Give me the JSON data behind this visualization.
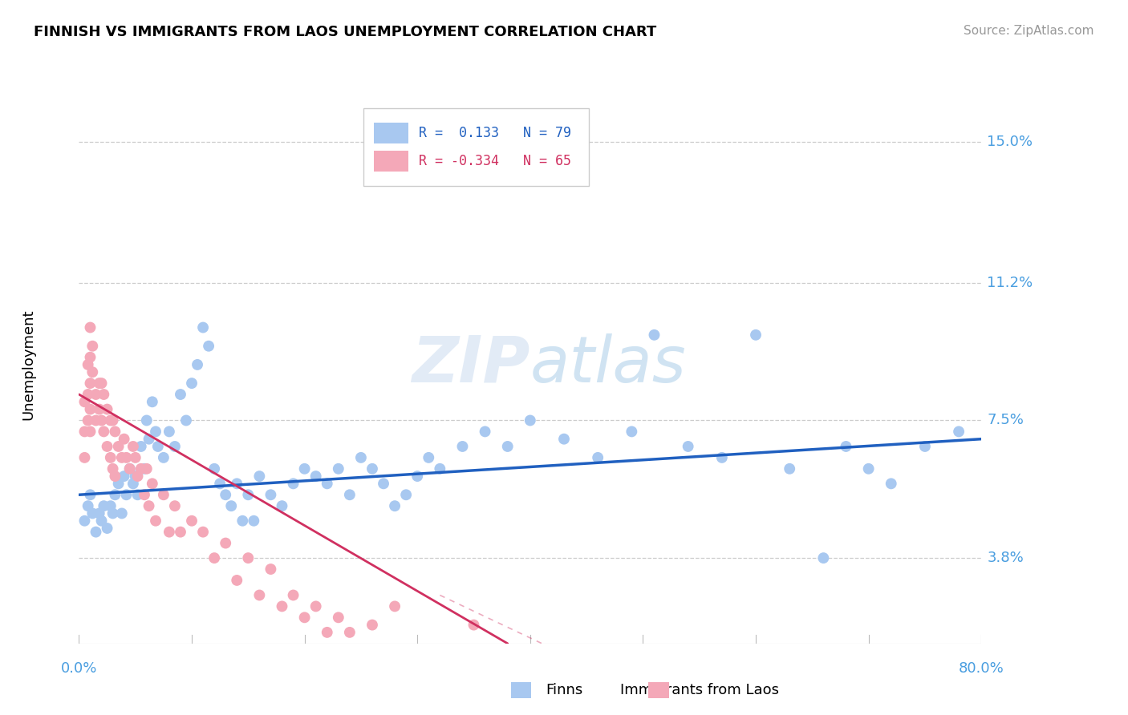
{
  "title": "FINNISH VS IMMIGRANTS FROM LAOS UNEMPLOYMENT CORRELATION CHART",
  "source": "Source: ZipAtlas.com",
  "ylabel": "Unemployment",
  "ytick_labels": [
    "3.8%",
    "7.5%",
    "11.2%",
    "15.0%"
  ],
  "ytick_values": [
    0.038,
    0.075,
    0.112,
    0.15
  ],
  "xlim": [
    0.0,
    0.8
  ],
  "ylim": [
    0.015,
    0.165
  ],
  "finn_color": "#a8c8f0",
  "laos_color": "#f4a8b8",
  "finn_line_color": "#2060c0",
  "laos_line_color": "#d03060",
  "finns_x": [
    0.005,
    0.008,
    0.01,
    0.012,
    0.015,
    0.018,
    0.02,
    0.022,
    0.025,
    0.028,
    0.03,
    0.032,
    0.035,
    0.038,
    0.04,
    0.042,
    0.045,
    0.048,
    0.05,
    0.052,
    0.055,
    0.058,
    0.06,
    0.062,
    0.065,
    0.068,
    0.07,
    0.075,
    0.08,
    0.085,
    0.09,
    0.095,
    0.1,
    0.105,
    0.11,
    0.115,
    0.12,
    0.125,
    0.13,
    0.135,
    0.14,
    0.145,
    0.15,
    0.155,
    0.16,
    0.17,
    0.18,
    0.19,
    0.2,
    0.21,
    0.22,
    0.23,
    0.24,
    0.25,
    0.26,
    0.27,
    0.28,
    0.29,
    0.3,
    0.31,
    0.32,
    0.34,
    0.36,
    0.38,
    0.4,
    0.43,
    0.46,
    0.49,
    0.51,
    0.54,
    0.57,
    0.6,
    0.63,
    0.66,
    0.68,
    0.7,
    0.72,
    0.75,
    0.78
  ],
  "finns_y": [
    0.048,
    0.052,
    0.055,
    0.05,
    0.045,
    0.05,
    0.048,
    0.052,
    0.046,
    0.052,
    0.05,
    0.055,
    0.058,
    0.05,
    0.06,
    0.055,
    0.062,
    0.058,
    0.06,
    0.055,
    0.068,
    0.062,
    0.075,
    0.07,
    0.08,
    0.072,
    0.068,
    0.065,
    0.072,
    0.068,
    0.082,
    0.075,
    0.085,
    0.09,
    0.1,
    0.095,
    0.062,
    0.058,
    0.055,
    0.052,
    0.058,
    0.048,
    0.055,
    0.048,
    0.06,
    0.055,
    0.052,
    0.058,
    0.062,
    0.06,
    0.058,
    0.062,
    0.055,
    0.065,
    0.062,
    0.058,
    0.052,
    0.055,
    0.06,
    0.065,
    0.062,
    0.068,
    0.072,
    0.068,
    0.075,
    0.07,
    0.065,
    0.072,
    0.098,
    0.068,
    0.065,
    0.098,
    0.062,
    0.038,
    0.068,
    0.062,
    0.058,
    0.068,
    0.072
  ],
  "laos_x": [
    0.005,
    0.005,
    0.005,
    0.008,
    0.008,
    0.008,
    0.01,
    0.01,
    0.01,
    0.01,
    0.01,
    0.012,
    0.012,
    0.015,
    0.015,
    0.018,
    0.018,
    0.02,
    0.02,
    0.022,
    0.022,
    0.025,
    0.025,
    0.028,
    0.028,
    0.03,
    0.03,
    0.032,
    0.032,
    0.035,
    0.038,
    0.04,
    0.042,
    0.045,
    0.048,
    0.05,
    0.052,
    0.055,
    0.058,
    0.06,
    0.062,
    0.065,
    0.068,
    0.075,
    0.08,
    0.085,
    0.09,
    0.1,
    0.11,
    0.12,
    0.13,
    0.14,
    0.15,
    0.16,
    0.17,
    0.18,
    0.19,
    0.2,
    0.21,
    0.22,
    0.23,
    0.24,
    0.26,
    0.28,
    0.35
  ],
  "laos_y": [
    0.08,
    0.072,
    0.065,
    0.09,
    0.082,
    0.075,
    0.1,
    0.092,
    0.085,
    0.078,
    0.072,
    0.095,
    0.088,
    0.082,
    0.075,
    0.085,
    0.078,
    0.085,
    0.075,
    0.082,
    0.072,
    0.078,
    0.068,
    0.075,
    0.065,
    0.075,
    0.062,
    0.072,
    0.06,
    0.068,
    0.065,
    0.07,
    0.065,
    0.062,
    0.068,
    0.065,
    0.06,
    0.062,
    0.055,
    0.062,
    0.052,
    0.058,
    0.048,
    0.055,
    0.045,
    0.052,
    0.045,
    0.048,
    0.045,
    0.038,
    0.042,
    0.032,
    0.038,
    0.028,
    0.035,
    0.025,
    0.028,
    0.022,
    0.025,
    0.018,
    0.022,
    0.018,
    0.02,
    0.025,
    0.02
  ],
  "finn_line_x0": 0.0,
  "finn_line_x1": 0.8,
  "finn_line_y0": 0.055,
  "finn_line_y1": 0.07,
  "laos_line_x0": 0.0,
  "laos_line_x1": 0.38,
  "laos_line_y0": 0.082,
  "laos_line_y1": 0.015
}
